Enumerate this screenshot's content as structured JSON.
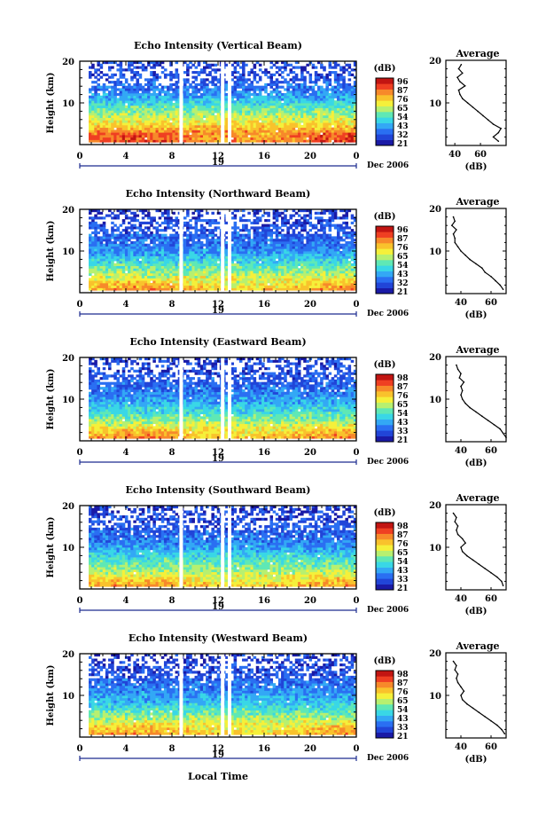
{
  "colors": {
    "scale": [
      "#1a1aa6",
      "#2145d8",
      "#2a6ff2",
      "#33a8f5",
      "#39d7e6",
      "#5fe8b5",
      "#b7f070",
      "#f5f03a",
      "#f9c22c",
      "#f7892a",
      "#ef3f22",
      "#c21512"
    ],
    "frame": "#000000",
    "date_axis": "#1c2b8f",
    "background": "#ffffff"
  },
  "common": {
    "y_axis_label": "Height (km)",
    "height_ticks": [
      "20",
      "10"
    ],
    "time_ticks": [
      "0",
      "4",
      "8",
      "12",
      "16",
      "20",
      "0"
    ],
    "date_day": "19",
    "date_month": "Dec 2006",
    "colorbar_unit": "(dB)",
    "avg_title": "Average",
    "avg_unit": "(dB)",
    "avg_x_ticks": [
      "40",
      "60"
    ],
    "x_axis_label": "Local Time"
  },
  "panels": [
    {
      "title": "Echo Intensity (Vertical Beam)",
      "colorbar_ticks": [
        "96",
        "87",
        "76",
        "65",
        "54",
        "43",
        "32",
        "21"
      ]
    },
    {
      "title": "Echo Intensity (Northward Beam)",
      "colorbar_ticks": [
        "96",
        "87",
        "76",
        "65",
        "54",
        "43",
        "32",
        "21"
      ]
    },
    {
      "title": "Echo Intensity (Eastward Beam)",
      "colorbar_ticks": [
        "98",
        "87",
        "76",
        "65",
        "54",
        "43",
        "33",
        "21"
      ]
    },
    {
      "title": "Echo Intensity (Southward Beam)",
      "colorbar_ticks": [
        "98",
        "87",
        "76",
        "65",
        "54",
        "43",
        "33",
        "21"
      ]
    },
    {
      "title": "Echo Intensity (Westward Beam)",
      "colorbar_ticks": [
        "98",
        "87",
        "76",
        "65",
        "54",
        "43",
        "33",
        "21"
      ]
    }
  ],
  "chart_data": [
    {
      "type": "heatmap",
      "title": "Echo Intensity (Vertical Beam)",
      "xlabel": "",
      "ylabel": "Height (km)",
      "xlim": [
        0,
        24
      ],
      "ylim": [
        0,
        20
      ],
      "zunit": "dB",
      "zlim": [
        21,
        96
      ],
      "x_ticks": [
        0,
        4,
        8,
        12,
        16,
        20,
        24
      ],
      "data_gaps_hours": [
        8.8,
        12.4,
        13.0
      ],
      "height_km": [
        1,
        3,
        5,
        7,
        9,
        11,
        13,
        15,
        17,
        19
      ],
      "intensity_dB": [
        82,
        80,
        70,
        62,
        55,
        45,
        38,
        34,
        32,
        30
      ],
      "average_profile": {
        "xlabel": "(dB)",
        "title": "Average",
        "xlim": [
          33,
          80
        ],
        "height_km": [
          1,
          2,
          3,
          4,
          5,
          6,
          7,
          8,
          9,
          10,
          11,
          12,
          13,
          14,
          15,
          16,
          17,
          18,
          19
        ],
        "dB": [
          74,
          70,
          74,
          76,
          70,
          66,
          62,
          58,
          54,
          50,
          46,
          44,
          43,
          48,
          44,
          42,
          46,
          43,
          45
        ]
      }
    },
    {
      "type": "heatmap",
      "title": "Echo Intensity (Northward Beam)",
      "xlabel": "",
      "ylabel": "Height (km)",
      "xlim": [
        0,
        24
      ],
      "ylim": [
        0,
        20
      ],
      "zunit": "dB",
      "zlim": [
        21,
        96
      ],
      "x_ticks": [
        0,
        4,
        8,
        12,
        16,
        20,
        24
      ],
      "data_gaps_hours": [
        8.8,
        12.4,
        13.0
      ],
      "height_km": [
        1,
        3,
        5,
        7,
        9,
        11,
        13,
        15,
        17,
        19
      ],
      "intensity_dB": [
        75,
        68,
        60,
        52,
        45,
        38,
        35,
        33,
        31,
        28
      ],
      "average_profile": {
        "xlabel": "(dB)",
        "title": "Average",
        "xlim": [
          30,
          70
        ],
        "height_km": [
          1,
          2,
          3,
          4,
          5,
          6,
          7,
          8,
          9,
          10,
          11,
          12,
          13,
          14,
          15,
          16,
          17,
          18
        ],
        "dB": [
          68,
          66,
          63,
          60,
          56,
          54,
          50,
          46,
          43,
          40,
          38,
          36,
          36,
          35,
          37,
          34,
          36,
          35
        ]
      }
    },
    {
      "type": "heatmap",
      "title": "Echo Intensity (Eastward Beam)",
      "xlabel": "",
      "ylabel": "Height (km)",
      "xlim": [
        0,
        24
      ],
      "ylim": [
        0,
        20
      ],
      "zunit": "dB",
      "zlim": [
        21,
        98
      ],
      "x_ticks": [
        0,
        4,
        8,
        12,
        16,
        20,
        24
      ],
      "data_gaps_hours": [
        8.8,
        12.4,
        13.0
      ],
      "height_km": [
        1,
        3,
        5,
        7,
        9,
        11,
        13,
        15,
        17,
        19
      ],
      "intensity_dB": [
        78,
        70,
        60,
        52,
        45,
        40,
        36,
        34,
        32,
        30
      ],
      "average_profile": {
        "xlabel": "(dB)",
        "title": "Average",
        "xlim": [
          30,
          70
        ],
        "height_km": [
          1,
          2,
          3,
          4,
          5,
          6,
          7,
          8,
          9,
          10,
          11,
          12,
          13,
          14,
          15,
          16,
          17,
          18
        ],
        "dB": [
          70,
          68,
          66,
          62,
          58,
          54,
          50,
          46,
          43,
          41,
          40,
          41,
          40,
          42,
          39,
          40,
          38,
          37
        ]
      }
    },
    {
      "type": "heatmap",
      "title": "Echo Intensity (Southward Beam)",
      "xlabel": "",
      "ylabel": "Height (km)",
      "xlim": [
        0,
        24
      ],
      "ylim": [
        0,
        20
      ],
      "zunit": "dB",
      "zlim": [
        21,
        98
      ],
      "x_ticks": [
        0,
        4,
        8,
        12,
        16,
        20,
        24
      ],
      "data_gaps_hours": [
        8.8,
        12.4,
        13.0
      ],
      "height_km": [
        1,
        3,
        5,
        7,
        9,
        11,
        13,
        15,
        17,
        19
      ],
      "intensity_dB": [
        76,
        68,
        60,
        54,
        46,
        40,
        36,
        33,
        31,
        29
      ],
      "average_profile": {
        "xlabel": "(dB)",
        "title": "Average",
        "xlim": [
          30,
          70
        ],
        "height_km": [
          1,
          2,
          3,
          4,
          5,
          6,
          7,
          8,
          9,
          10,
          11,
          12,
          13,
          14,
          15,
          16,
          17,
          18
        ],
        "dB": [
          68,
          67,
          64,
          60,
          56,
          52,
          48,
          44,
          41,
          40,
          43,
          41,
          38,
          37,
          38,
          36,
          37,
          35
        ]
      }
    },
    {
      "type": "heatmap",
      "title": "Echo Intensity (Westward Beam)",
      "xlabel": "Local Time",
      "ylabel": "Height (km)",
      "xlim": [
        0,
        24
      ],
      "ylim": [
        0,
        20
      ],
      "zunit": "dB",
      "zlim": [
        21,
        98
      ],
      "x_ticks": [
        0,
        4,
        8,
        12,
        16,
        20,
        24
      ],
      "data_gaps_hours": [
        8.8,
        12.4,
        13.0
      ],
      "height_km": [
        1,
        3,
        5,
        7,
        9,
        11,
        13,
        15,
        17,
        19
      ],
      "intensity_dB": [
        76,
        70,
        60,
        52,
        45,
        40,
        36,
        33,
        31,
        29
      ],
      "average_profile": {
        "xlabel": "(dB)",
        "title": "Average",
        "xlim": [
          30,
          70
        ],
        "height_km": [
          1,
          2,
          3,
          4,
          5,
          6,
          7,
          8,
          9,
          10,
          11,
          12,
          13,
          14,
          15,
          16,
          17,
          18
        ],
        "dB": [
          69,
          67,
          64,
          60,
          56,
          52,
          48,
          44,
          41,
          40,
          42,
          40,
          38,
          37,
          38,
          36,
          37,
          35
        ]
      }
    }
  ]
}
